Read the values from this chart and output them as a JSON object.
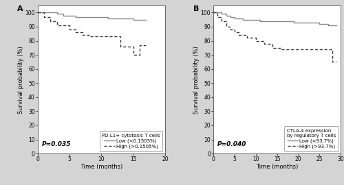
{
  "panel_A": {
    "label": "A",
    "pvalue": "P=0.035",
    "xlabel": "Time (months)",
    "ylabel": "Survival probability (%)",
    "xlim": [
      0,
      20
    ],
    "ylim": [
      0,
      105
    ],
    "yticks": [
      0,
      10,
      20,
      30,
      40,
      50,
      60,
      70,
      80,
      90,
      100
    ],
    "xticks": [
      0,
      5,
      10,
      15,
      20
    ],
    "legend_title": "PD-L1+ cytotoxic T cells",
    "legend_low": "Low (<0.1505%)",
    "legend_high": "High (>0.1505%)",
    "low_x": [
      0,
      0.5,
      2,
      3,
      4,
      5,
      6,
      7,
      8,
      9,
      10,
      11,
      12,
      13,
      14,
      15,
      16,
      17
    ],
    "low_y": [
      100,
      100,
      100,
      99,
      98,
      98,
      97,
      97,
      97,
      97,
      97,
      96,
      96,
      96,
      96,
      95,
      95,
      95
    ],
    "high_x": [
      0,
      1,
      2,
      3,
      4,
      5,
      6,
      7,
      8,
      9,
      10,
      11,
      12,
      13,
      14,
      15,
      16,
      17
    ],
    "high_y": [
      100,
      97,
      94,
      91,
      91,
      88,
      86,
      84,
      83,
      83,
      83,
      83,
      83,
      76,
      76,
      70,
      77,
      77
    ]
  },
  "panel_B": {
    "label": "B",
    "pvalue": "P=0.040",
    "xlabel": "Time (months)",
    "ylabel": "Survival probability (%)",
    "xlim": [
      0,
      30
    ],
    "ylim": [
      0,
      105
    ],
    "yticks": [
      0,
      10,
      20,
      30,
      40,
      50,
      60,
      70,
      80,
      90,
      100
    ],
    "xticks": [
      0,
      5,
      10,
      15,
      20,
      25,
      30
    ],
    "legend_title": "CTLA-4 expression\nby regulatory T cells",
    "legend_low": "Low (<93.7%)",
    "legend_high": "High (>93.7%)",
    "low_x": [
      0,
      1,
      2,
      3,
      4,
      5,
      7,
      9,
      11,
      13,
      15,
      17,
      19,
      21,
      23,
      25,
      27,
      28,
      29
    ],
    "low_y": [
      100,
      100,
      99,
      98,
      97,
      96,
      95,
      95,
      94,
      94,
      94,
      94,
      93,
      93,
      93,
      92,
      91,
      91,
      91
    ],
    "high_x": [
      0,
      1,
      2,
      3,
      4,
      5,
      6,
      8,
      10,
      12,
      14,
      16,
      18,
      20,
      22,
      24,
      26,
      28,
      29
    ],
    "high_y": [
      100,
      97,
      94,
      90,
      88,
      86,
      84,
      82,
      80,
      78,
      75,
      74,
      74,
      74,
      74,
      74,
      74,
      65,
      65
    ]
  },
  "fig_bg": "#d4d4d4",
  "ax_bg": "#ffffff",
  "line_color_low": "#888888",
  "line_color_high": "#333333",
  "line_width": 1.0,
  "font_size_label": 6,
  "font_size_tick": 5.5,
  "font_size_legend": 5,
  "font_size_panel": 8
}
